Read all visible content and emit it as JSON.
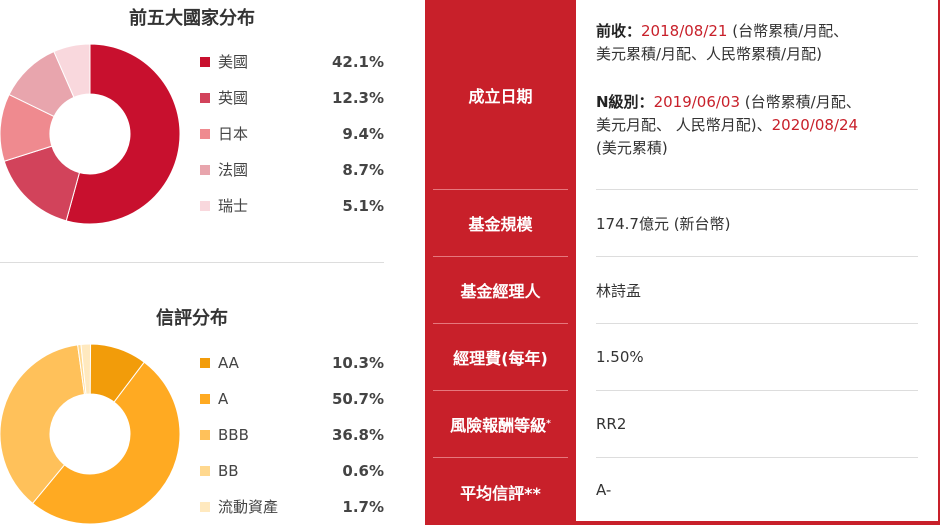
{
  "countries": {
    "title": "前五大國家分布",
    "items": [
      {
        "label": "美國",
        "pct": "42.1%",
        "value": 42.1,
        "color": "#c8102e"
      },
      {
        "label": "英國",
        "pct": "12.3%",
        "value": 12.3,
        "color": "#d2435b"
      },
      {
        "label": "日本",
        "pct": "9.4%",
        "value": 9.4,
        "color": "#ef8a8f"
      },
      {
        "label": "法國",
        "pct": "8.7%",
        "value": 8.7,
        "color": "#e8a5ad"
      },
      {
        "label": "瑞士",
        "pct": "5.1%",
        "value": 5.1,
        "color": "#f9d8dd"
      }
    ]
  },
  "ratings": {
    "title": "信評分布",
    "items": [
      {
        "label": "AA",
        "pct": "10.3%",
        "value": 10.3,
        "color": "#f29c0a"
      },
      {
        "label": "A",
        "pct": "50.7%",
        "value": 50.7,
        "color": "#ffaa22"
      },
      {
        "label": "BBB",
        "pct": "36.8%",
        "value": 36.8,
        "color": "#ffc15a"
      },
      {
        "label": "BB",
        "pct": "0.6%",
        "value": 0.6,
        "color": "#ffd88f"
      },
      {
        "label": "流動資產",
        "pct": "1.7%",
        "value": 1.7,
        "color": "#ffe9bf"
      }
    ]
  },
  "fund_table": {
    "launch_date": {
      "header": "成立日期",
      "front_label": "前收：",
      "front_date": "2018/08/21",
      "front_note1": " (台幣累積/月配、",
      "front_note2": "美元累積/月配、人民幣累積/月配)",
      "n_label": "N級別：",
      "n_date1": "2019/06/03",
      "n_note1": " (台幣累積/月配、",
      "n_note2": "美元月配、 人民幣月配)、",
      "n_date2": "2020/08/24",
      "n_note3": "(美元累積)"
    },
    "rows": [
      {
        "header": "基金規模",
        "value": "174.7億元 (新台幣)"
      },
      {
        "header": "基金經理人",
        "value": "林詩孟"
      },
      {
        "header": "經理費(每年)",
        "value": "1.50%"
      },
      {
        "header": "風險報酬等級",
        "header_sup": "*",
        "value": "RR2"
      },
      {
        "header": "平均信評**",
        "value": "A-"
      }
    ]
  }
}
